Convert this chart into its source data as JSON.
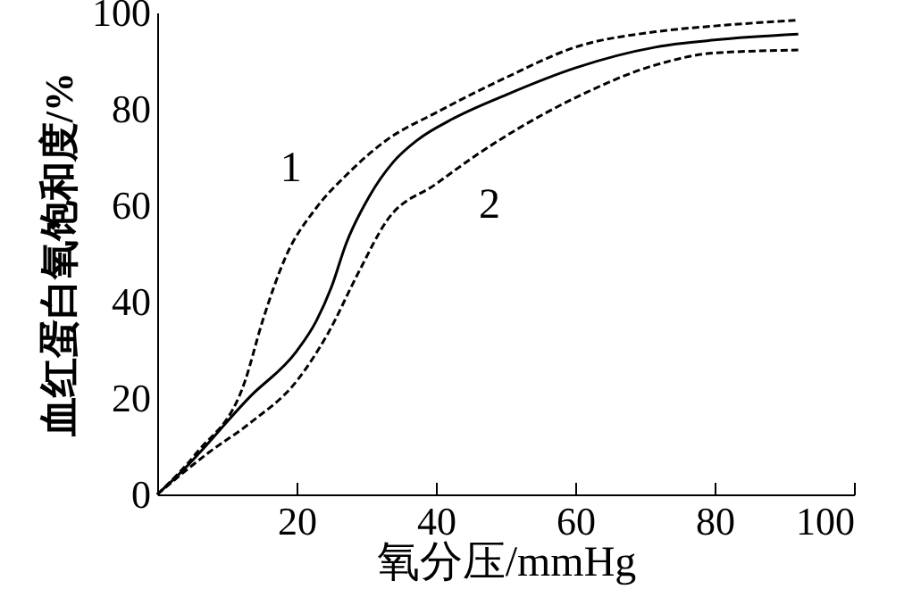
{
  "chart_data": {
    "type": "line",
    "xlabel": "氧分压/mmHg",
    "ylabel": "血红蛋白氧饱和度/%",
    "xlim": [
      0,
      100
    ],
    "ylim": [
      0,
      100
    ],
    "xticks": [
      20,
      40,
      60,
      80,
      100
    ],
    "yticks": [
      0,
      20,
      40,
      60,
      80,
      100
    ],
    "grid": false,
    "marker": "none",
    "series": [
      {
        "name": "1",
        "color": "#000000",
        "line_style": "dashed",
        "x": [
          0,
          5.7,
          12.6,
          15.1,
          18.5,
          22.8,
          27.1,
          33,
          40,
          50.2,
          60,
          71.5,
          80,
          92
        ],
        "values": [
          0,
          8.7,
          23.5,
          35.9,
          49.5,
          59.4,
          66.2,
          73.6,
          79.2,
          86.6,
          92.8,
          96,
          97.2,
          98.4
        ]
      },
      {
        "color": "#000000",
        "line_style": "solid",
        "x": [
          0,
          3,
          13.4,
          20,
          22.8,
          25,
          27.1,
          30.5,
          33.9,
          37.4,
          42.5,
          50.2,
          60,
          71.5,
          80,
          92
        ],
        "values": [
          0,
          4,
          20.4,
          29.7,
          35.9,
          43,
          52,
          62,
          69,
          73.6,
          78,
          83,
          88.5,
          92.8,
          94.3,
          95.5
        ]
      },
      {
        "name": "2",
        "color": "#000000",
        "line_style": "dashed",
        "x": [
          0,
          7.4,
          13.4,
          20,
          24.5,
          28.8,
          33,
          40,
          45.9,
          60,
          71.5,
          80,
          92
        ],
        "values": [
          0,
          8.7,
          14.9,
          23.5,
          33.4,
          45.8,
          56.9,
          64.4,
          70.5,
          82.3,
          89.1,
          91.6,
          92.2
        ]
      }
    ]
  }
}
